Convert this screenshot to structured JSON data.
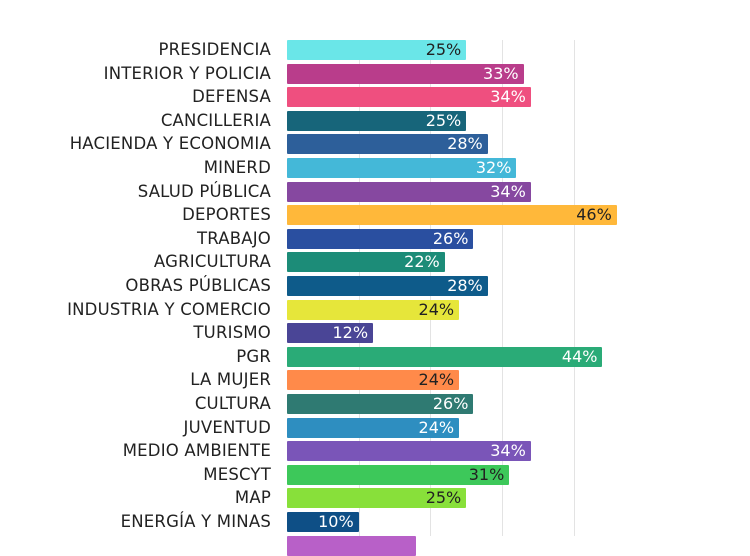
{
  "chart_data": {
    "type": "bar",
    "orientation": "horizontal",
    "xlim": [
      0,
      50
    ],
    "grid": true,
    "categories": [
      "PRESIDENCIA",
      "INTERIOR Y POLICIA",
      "DEFENSA",
      "CANCILLERIA",
      "HACIENDA Y ECONOMIA",
      "MINERD",
      "SALUD PÚBLICA",
      "DEPORTES",
      "TRABAJO",
      "AGRICULTURA",
      "OBRAS PÚBLICAS",
      "INDUSTRIA Y COMERCIO",
      "TURISMO",
      "PGR",
      "LA MUJER",
      "CULTURA",
      "JUVENTUD",
      "MEDIO AMBIENTE",
      "MESCYT",
      "MAP",
      "ENERGÍA Y MINAS",
      ""
    ],
    "values": [
      25,
      33,
      34,
      25,
      28,
      32,
      34,
      46,
      26,
      22,
      28,
      24,
      12,
      44,
      24,
      26,
      24,
      34,
      31,
      25,
      10,
      18
    ],
    "value_labels": [
      "25%",
      "33%",
      "34%",
      "25%",
      "28%",
      "32%",
      "34%",
      "46%",
      "26%",
      "22%",
      "28%",
      "24%",
      "12%",
      "44%",
      "24%",
      "26%",
      "24%",
      "34%",
      "31%",
      "25%",
      "10%",
      ""
    ],
    "colors": [
      "#6ae6e8",
      "#b93d8b",
      "#ef4f7f",
      "#17657a",
      "#2d5f9a",
      "#44b8d8",
      "#8648a0",
      "#ffb83a",
      "#2a4fa0",
      "#1c8c78",
      "#0e5b8a",
      "#e6e63a",
      "#4a4596",
      "#2aab77",
      "#ff8a4a",
      "#2f7a72",
      "#2e8ec0",
      "#7a55b8",
      "#3dc85a",
      "#88e03a",
      "#0e4f86",
      "#b860c8"
    ],
    "label_colors": [
      "#222",
      "#fff",
      "#fff",
      "#fff",
      "#fff",
      "#fff",
      "#fff",
      "#222",
      "#fff",
      "#fff",
      "#fff",
      "#222",
      "#fff",
      "#fff",
      "#222",
      "#fff",
      "#fff",
      "#fff",
      "#222",
      "#222",
      "#fff",
      "#fff"
    ]
  }
}
